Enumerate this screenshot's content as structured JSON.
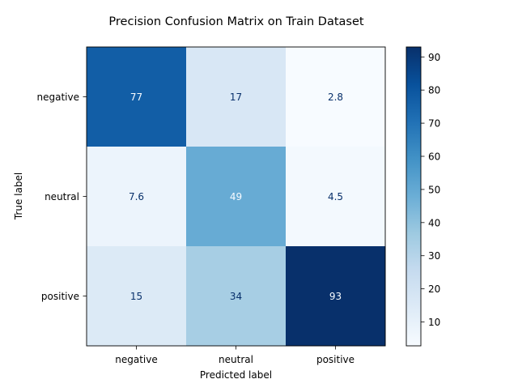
{
  "chart_data": {
    "type": "heatmap",
    "title": "Precision Confusion Matrix on Train Dataset",
    "xlabel": "Predicted label",
    "ylabel": "True label",
    "x_categories": [
      "negative",
      "neutral",
      "positive"
    ],
    "y_categories": [
      "negative",
      "neutral",
      "positive"
    ],
    "values": [
      [
        77,
        17,
        2.8
      ],
      [
        7.6,
        49,
        4.5
      ],
      [
        15,
        34,
        93
      ]
    ],
    "cell_labels": [
      [
        "77",
        "17",
        "2.8"
      ],
      [
        "7.6",
        "49",
        "4.5"
      ],
      [
        "15",
        "34",
        "93"
      ]
    ],
    "colormap": "Blues",
    "colorbar": {
      "range": [
        2.8,
        93
      ],
      "ticks": [
        10,
        20,
        30,
        40,
        50,
        60,
        70,
        80,
        90
      ],
      "tick_labels": [
        "10",
        "20",
        "30",
        "40",
        "50",
        "60",
        "70",
        "80",
        "90"
      ]
    },
    "grid": false
  }
}
